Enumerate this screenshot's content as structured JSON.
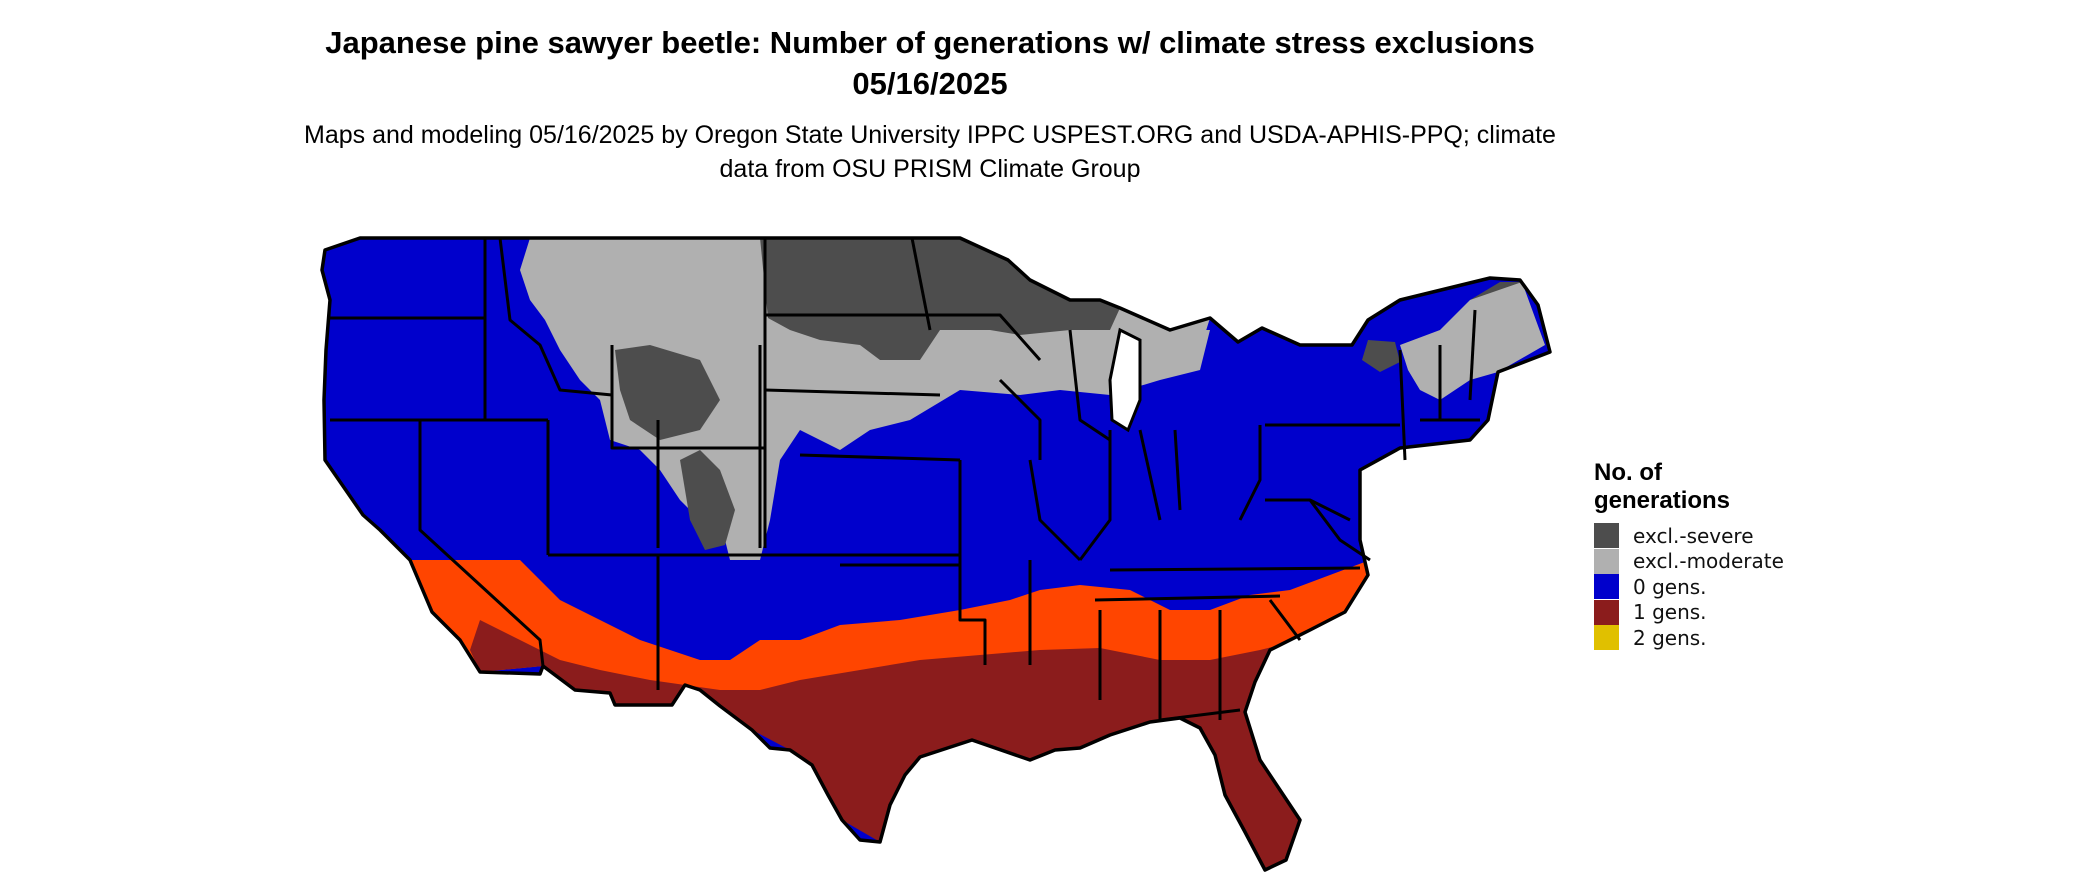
{
  "title": "Japanese pine sawyer beetle: Number of generations w/ climate stress exclusions 05/16/2025",
  "subtitle": "Maps and modeling 05/16/2025 by Oregon State University IPPC USPEST.ORG and USDA-APHIS-PPQ; climate data from OSU PRISM Climate Group",
  "legend": {
    "title": "No. of generations",
    "items": [
      {
        "label": "excl.-severe",
        "color": "#4d4d4d"
      },
      {
        "label": "excl.-moderate",
        "color": "#b0b0b0"
      },
      {
        "label": "0 gens.",
        "color": "#0000cc"
      },
      {
        "label": "1 gens.",
        "color": "#8b1c1c"
      },
      {
        "label": "2 gens.",
        "color": "#e0c000"
      }
    ]
  },
  "colors": {
    "severe": "#4d4d4d",
    "moderate": "#b0b0b0",
    "zero": "#0000cc",
    "one": "#8b1c1c",
    "one_light": "#ff4500",
    "two": "#e0c000",
    "border": "#000000"
  }
}
